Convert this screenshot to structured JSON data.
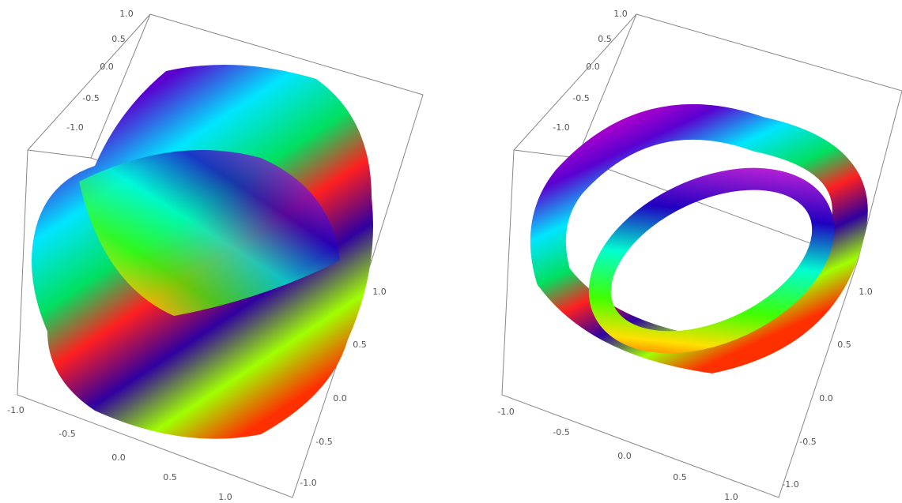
{
  "plots": [
    {
      "vertical_axis": {
        "ticks": [
          "1.0",
          "0.5",
          "0.0",
          "-0.5",
          "-1.0"
        ]
      },
      "front_axis": {
        "ticks": [
          "-1.0",
          "-0.5",
          "0.0",
          "0.5",
          "1.0"
        ]
      },
      "side_axis": {
        "ticks": [
          "1.0",
          "0.5",
          "0.0",
          "-0.5",
          "-1.0"
        ]
      }
    },
    {
      "vertical_axis": {
        "ticks": [
          "1.0",
          "0.5",
          "0.0",
          "-0.5",
          "-1.0"
        ]
      },
      "front_axis": {
        "ticks": [
          "-1.0",
          "-0.5",
          "0.0",
          "0.5",
          "1.0"
        ]
      },
      "side_axis": {
        "ticks": [
          "1.0",
          "0.5",
          "0.0",
          "-0.5",
          "-1.0"
        ]
      }
    }
  ]
}
